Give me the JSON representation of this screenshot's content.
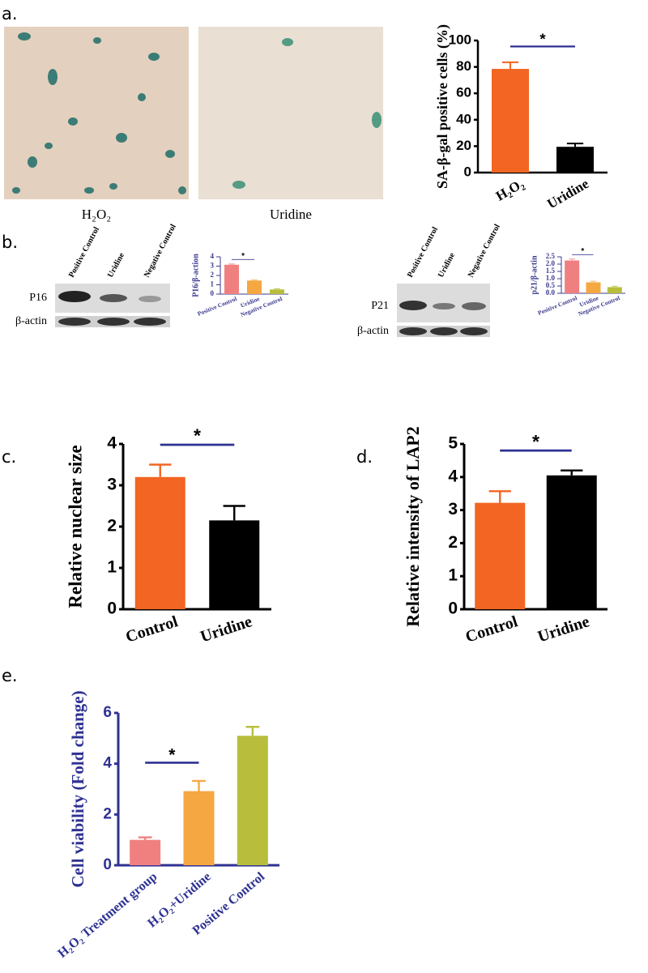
{
  "panel_labels": [
    "a.",
    "b.",
    "c.",
    "d.",
    "e."
  ],
  "image_captions": [
    "H₂O₂",
    "Uridine"
  ],
  "blots": [
    {
      "lanes": [
        "Positive Control",
        "Uridine",
        "Negative Control"
      ],
      "bands": [
        "P16",
        "β-actin"
      ]
    },
    {
      "lanes": [
        "Positive Control",
        "Uridine",
        "Negative Control"
      ],
      "bands": [
        "P21",
        "β-actin"
      ]
    }
  ],
  "chart_data": [
    {
      "type": "bar",
      "y_label": "SA-β-gal positive cells (%)",
      "categories": [
        "H₂O₂",
        "Uridine"
      ],
      "values": [
        78.5,
        19.5
      ],
      "errors": [
        5,
        2.5
      ],
      "colors": [
        "#f26522",
        "#000000"
      ],
      "ylim": [
        0,
        100
      ],
      "yticks": [
        0,
        20,
        40,
        60,
        80,
        100
      ],
      "annotation": "*"
    },
    {
      "type": "bar",
      "y_label": "P16/β-action",
      "categories": [
        "Positive Control",
        "Uridine",
        "Negative Control"
      ],
      "values": [
        3.15,
        1.45,
        0.5
      ],
      "errors": [
        0.08,
        0.06,
        0.08
      ],
      "colors": [
        "#f08080",
        "#f5a742",
        "#b8be3c"
      ],
      "ylim": [
        0,
        4
      ],
      "yticks": [
        0,
        1,
        2,
        3,
        4
      ],
      "annotation": "*"
    },
    {
      "type": "bar",
      "y_label": "p21/β-actin",
      "categories": [
        "Positive Control",
        "Uridine",
        "Negative Control"
      ],
      "values": [
        2.25,
        0.75,
        0.42
      ],
      "errors": [
        0.1,
        0.08,
        0.07
      ],
      "colors": [
        "#f08080",
        "#f5a742",
        "#b8be3c"
      ],
      "ylim": [
        0,
        2.5
      ],
      "yticks": [
        {
          "value": 0,
          "label": "0.0"
        },
        0.5,
        {
          "value": 1,
          "label": "1.0"
        },
        1.5,
        {
          "value": 2,
          "label": "2.0"
        },
        2.5
      ],
      "annotation": "*"
    },
    {
      "type": "bar",
      "y_label": "Relative nuclear size",
      "categories": [
        "Control",
        "Uridine"
      ],
      "values": [
        3.2,
        2.15
      ],
      "errors": [
        0.3,
        0.35
      ],
      "colors": [
        "#f26522",
        "#000000"
      ],
      "ylim": [
        0,
        4
      ],
      "yticks": [
        0,
        1,
        2,
        3,
        4
      ],
      "annotation": "*"
    },
    {
      "type": "bar",
      "y_label": "Relative intensity of LAP2",
      "categories": [
        "Control",
        "Uridine"
      ],
      "values": [
        3.22,
        4.05
      ],
      "errors": [
        0.35,
        0.15
      ],
      "colors": [
        "#f26522",
        "#000000"
      ],
      "ylim": [
        0,
        5
      ],
      "yticks": [
        0,
        1,
        2,
        3,
        4,
        5
      ],
      "annotation": "*"
    },
    {
      "type": "bar",
      "y_label": "Cell viability (Fold change)",
      "categories": [
        "H₂O₂ Treatment group",
        "H₂O₂+Uridine",
        "Positive Control"
      ],
      "values": [
        1.0,
        2.92,
        5.1
      ],
      "errors": [
        0.1,
        0.4,
        0.35
      ],
      "colors": [
        "#f08080",
        "#f5a742",
        "#b8be3c"
      ],
      "ylim": [
        0,
        6
      ],
      "yticks": [
        0,
        2,
        4,
        6
      ],
      "annotation": "*"
    }
  ]
}
